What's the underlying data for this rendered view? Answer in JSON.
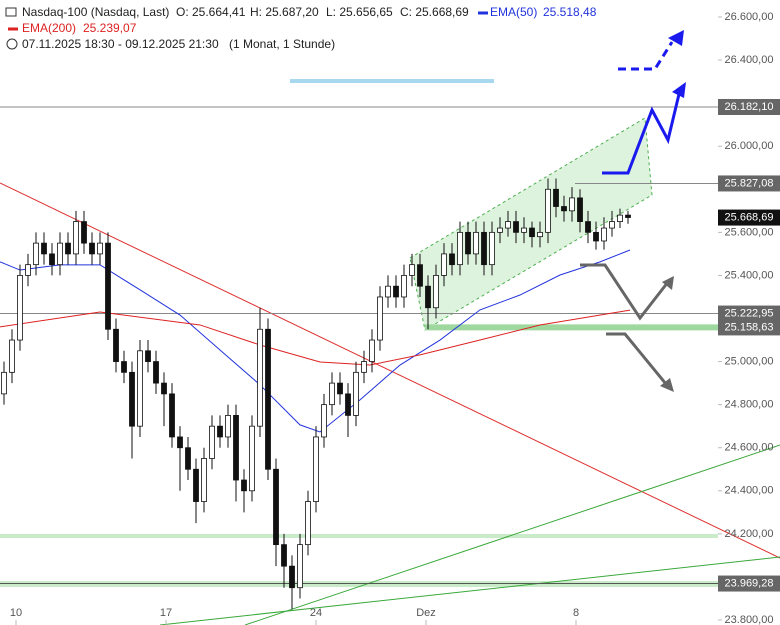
{
  "chart_data": {
    "type": "candlestick",
    "title": "Nasdaq-100 (Nasdaq, Last)",
    "ohlc_text": [
      "O: 25.664,41",
      "H: 25.687,20",
      "L: 25.656,65",
      "C: 25.668,69"
    ],
    "period": "07.11.2025 18:30 - 09.12.2025 21:30",
    "interval": "(1 Monat, 1 Stunde)",
    "x": [
      -3,
      -1,
      1,
      3,
      5,
      7,
      9,
      11,
      13,
      15,
      17,
      19,
      21,
      23,
      25,
      27,
      29,
      31,
      33,
      35,
      37,
      39,
      41,
      43,
      45,
      47,
      49,
      51,
      53,
      55,
      57,
      59,
      61,
      63,
      65,
      67,
      69,
      71,
      73,
      75,
      77,
      79,
      81,
      83,
      85,
      87,
      89,
      91,
      93,
      95,
      97,
      99,
      101,
      103,
      105,
      107,
      109,
      111,
      113,
      115,
      117,
      119,
      121,
      123,
      125,
      127,
      129,
      131,
      133,
      135,
      137,
      139,
      141,
      143,
      145,
      147,
      149,
      151,
      153
    ],
    "open": [
      24850,
      24950,
      25100,
      25400,
      25450,
      25550,
      25500,
      25450,
      25550,
      25500,
      25650,
      25550,
      25500,
      25550,
      25150,
      25000,
      24950,
      24700,
      25050,
      25000,
      24900,
      24850,
      24650,
      24600,
      24500,
      24350,
      24550,
      24700,
      24650,
      24750,
      24450,
      24400,
      24700,
      25150,
      24500,
      24150,
      24050,
      23950,
      24150,
      24350,
      24650,
      24800,
      24900,
      24850,
      24750,
      24950,
      25000,
      25100,
      25300,
      25350,
      25300,
      25400,
      25450,
      25350,
      25250,
      25400,
      25500,
      25450,
      25600,
      25500,
      25600,
      25450,
      25600,
      25620,
      25650,
      25600,
      25620,
      25580,
      25600,
      25800,
      25720,
      25700,
      25760,
      25650,
      25600,
      25560,
      25620,
      25650,
      25680
    ],
    "high": [
      25000,
      25150,
      25450,
      25500,
      25600,
      25600,
      25550,
      25600,
      25600,
      25700,
      25700,
      25600,
      25600,
      25600,
      25200,
      25050,
      25000,
      25100,
      25100,
      25050,
      24950,
      24900,
      24700,
      24650,
      24550,
      24600,
      24750,
      24750,
      24800,
      24800,
      24500,
      24750,
      25250,
      25200,
      24550,
      24200,
      24100,
      24200,
      24400,
      24700,
      24850,
      24950,
      24950,
      24900,
      25000,
      25050,
      25150,
      25350,
      25400,
      25400,
      25450,
      25500,
      25500,
      25400,
      25450,
      25550,
      25550,
      25650,
      25650,
      25650,
      25650,
      25650,
      25670,
      25700,
      25700,
      25670,
      25650,
      25650,
      25850,
      25850,
      25770,
      25810,
      25800,
      25700,
      25650,
      25670,
      25700,
      25710,
      25700
    ],
    "low": [
      24800,
      24900,
      25050,
      25350,
      25400,
      25450,
      25400,
      25400,
      25450,
      25450,
      25500,
      25450,
      25450,
      25100,
      24950,
      24900,
      24550,
      24650,
      24950,
      24850,
      24700,
      24600,
      24400,
      24450,
      24250,
      24300,
      24500,
      24600,
      24600,
      24350,
      24300,
      24350,
      24650,
      24450,
      24050,
      23950,
      23850,
      23900,
      24100,
      24300,
      24600,
      24750,
      24800,
      24650,
      24700,
      24900,
      24950,
      25050,
      25250,
      25250,
      25250,
      25350,
      25300,
      25150,
      25200,
      25350,
      25400,
      25400,
      25450,
      25450,
      25400,
      25400,
      25550,
      25580,
      25550,
      25550,
      25530,
      25530,
      25550,
      25670,
      25650,
      25650,
      25600,
      25550,
      25520,
      25520,
      25580,
      25620,
      25640
    ],
    "close": [
      24950,
      25100,
      25400,
      25450,
      25550,
      25500,
      25450,
      25550,
      25500,
      25650,
      25550,
      25500,
      25550,
      25150,
      25000,
      24950,
      24700,
      25050,
      25000,
      24900,
      24850,
      24650,
      24600,
      24500,
      24350,
      24550,
      24700,
      24650,
      24750,
      24450,
      24400,
      24700,
      25150,
      24500,
      24150,
      24050,
      23950,
      24150,
      24350,
      24650,
      24800,
      24900,
      24850,
      24750,
      24950,
      25000,
      25100,
      25300,
      25350,
      25300,
      25400,
      25450,
      25350,
      25250,
      25400,
      25500,
      25450,
      25600,
      25500,
      25600,
      25450,
      25600,
      25620,
      25650,
      25600,
      25620,
      25580,
      25600,
      25800,
      25720,
      25700,
      25760,
      25650,
      25600,
      25560,
      25620,
      25650,
      25680,
      25669
    ],
    "series": [
      {
        "name": "EMA(50)",
        "color": "#2233dd",
        "last_label": "25.518,48",
        "x": [
          -4,
          1,
          11,
          21,
          31,
          41,
          51,
          61,
          71,
          76,
          86,
          96,
          106,
          116,
          126,
          136,
          146,
          153.5
        ],
        "values": [
          25463,
          25425,
          25449,
          25449,
          25333,
          25216,
          25054,
          24892,
          24706,
          24673,
          24822,
          24984,
          25100,
          25240,
          25309,
          25402,
          25463,
          25518
        ]
      },
      {
        "name": "EMA(200)",
        "color": "#dd2222",
        "last_label": "25.239,07",
        "x": [
          -4,
          21,
          46,
          61,
          76,
          88.5,
          101,
          116,
          131,
          153.5
        ],
        "values": [
          25161,
          25230,
          25170,
          25077,
          24998,
          24984,
          25031,
          25100,
          25170,
          25239
        ]
      }
    ],
    "xlim": [
      -4,
      175.5
    ],
    "xticks": [
      {
        "value": 0,
        "label": "10"
      },
      {
        "value": 37.5,
        "label": "17"
      },
      {
        "value": 75,
        "label": "24"
      },
      {
        "value": 102.5,
        "label": "Dez"
      },
      {
        "value": 140,
        "label": "8"
      }
    ],
    "ylim": [
      23800,
      26600
    ],
    "yticks": [
      {
        "value": 26600,
        "label": "26.600,00"
      },
      {
        "value": 26400,
        "label": "26.400,00"
      },
      {
        "value": 26000,
        "label": "26.000,00"
      },
      {
        "value": 25600,
        "label": "25.600,00"
      },
      {
        "value": 25400,
        "label": "25.400,00"
      },
      {
        "value": 25000,
        "label": "25.000,00"
      },
      {
        "value": 24800,
        "label": "24.800,00"
      },
      {
        "value": 24600,
        "label": "24.600,00"
      },
      {
        "value": 24400,
        "label": "24.400,00"
      },
      {
        "value": 24200,
        "label": "24.200,00"
      },
      {
        "value": 23800,
        "label": "23.800,00"
      }
    ],
    "levels": [
      {
        "value": 26182.1,
        "label": "26.182,10",
        "color": "#888888"
      },
      {
        "value": 25827.08,
        "label": "25.827,08",
        "color": "#888888"
      },
      {
        "value": 25222.95,
        "label": "25.222,95",
        "color": "#888888"
      },
      {
        "value": 25158.63,
        "label": "25.158,63",
        "color": "#9fd89f"
      },
      {
        "value": 23969.28,
        "label": "23.969,28",
        "color": "#555555"
      }
    ],
    "last_price": {
      "value": 25668.69,
      "label": "25.668,69"
    }
  }
}
